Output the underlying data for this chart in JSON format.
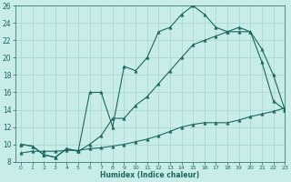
{
  "xlabel": "Humidex (Indice chaleur)",
  "background_color": "#c8ece8",
  "grid_color": "#a8d4d0",
  "line_color": "#1a6860",
  "line1_y": [
    10,
    9.8,
    8.8,
    8.5,
    9.5,
    9.2,
    16.0,
    16.0,
    12.0,
    19.0,
    18.5,
    20.0,
    23.0,
    23.5,
    25.0,
    26.0,
    25.0,
    23.5,
    23.0,
    23.0,
    23.0,
    19.5,
    15.0,
    14.0
  ],
  "line2_y": [
    10,
    9.8,
    8.8,
    8.5,
    9.5,
    9.2,
    10.0,
    11.0,
    13.0,
    13.0,
    14.5,
    15.5,
    17.0,
    18.5,
    20.0,
    21.5,
    22.0,
    22.5,
    23.0,
    23.5,
    23.0,
    21.0,
    18.0,
    14.0
  ],
  "line3_y": [
    9.0,
    9.2,
    9.2,
    9.2,
    9.3,
    9.3,
    9.5,
    9.6,
    9.8,
    10.0,
    10.3,
    10.6,
    11.0,
    11.5,
    12.0,
    12.3,
    12.5,
    12.5,
    12.5,
    12.8,
    13.2,
    13.5,
    13.8,
    14.2
  ],
  "xlim": [
    -0.5,
    23
  ],
  "ylim": [
    8,
    26
  ],
  "xticks": [
    0,
    1,
    2,
    3,
    4,
    5,
    6,
    7,
    8,
    9,
    10,
    11,
    12,
    13,
    14,
    15,
    16,
    17,
    18,
    19,
    20,
    21,
    22,
    23
  ],
  "yticks": [
    8,
    10,
    12,
    14,
    16,
    18,
    20,
    22,
    24,
    26
  ]
}
